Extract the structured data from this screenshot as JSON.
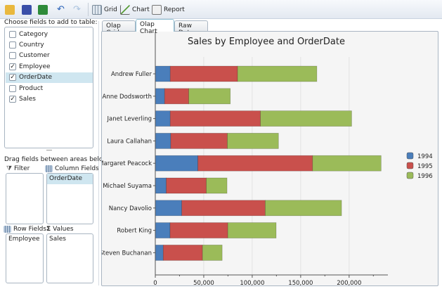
{
  "toolbar": {
    "buttons": [
      {
        "icon": "open-folder-icon"
      },
      {
        "icon": "save-icon"
      },
      {
        "icon": "excel-export-icon"
      },
      {
        "icon": "undo-icon"
      },
      {
        "icon": "redo-icon"
      }
    ],
    "grid_label": "Grid",
    "chart_label": "Chart",
    "report_label": "Report"
  },
  "left": {
    "choose_label": "Choose fields to add to table:",
    "fields": [
      {
        "label": "Category",
        "checked": false
      },
      {
        "label": "Country",
        "checked": false
      },
      {
        "label": "Customer",
        "checked": false
      },
      {
        "label": "Employee",
        "checked": true
      },
      {
        "label": "OrderDate",
        "checked": true,
        "selected": true
      },
      {
        "label": "Product",
        "checked": false
      },
      {
        "label": "Sales",
        "checked": true
      }
    ],
    "drag_label": "Drag fields between areas below:",
    "filter_label": "Filter",
    "column_label": "Column Fields",
    "row_label": "Row Fields",
    "values_label": "Values",
    "column_items": [
      "OrderDate"
    ],
    "row_items": [
      "Employee"
    ],
    "value_items": [
      "Sales"
    ]
  },
  "tabs": [
    {
      "label": "Olap Grid"
    },
    {
      "label": "Olap Chart",
      "active": true
    },
    {
      "label": "Raw Data"
    }
  ],
  "chart_data": {
    "type": "bar",
    "orientation": "horizontal",
    "stacked": true,
    "title": "Sales by Employee and OrderDate",
    "xlabel": "",
    "ylabel": "",
    "xlim": [
      0,
      240000
    ],
    "xticks": [
      0,
      50000,
      100000,
      150000,
      200000
    ],
    "xtick_labels": [
      "0",
      "50,000",
      "100,000",
      "150,000",
      "200,000"
    ],
    "grid": true,
    "legend": "right",
    "categories": [
      "Andrew Fuller",
      "Anne Dodsworth",
      "Janet Leverling",
      "Laura Callahan",
      "Margaret Peacock",
      "Michael Suyama",
      "Nancy Davolio",
      "Robert King",
      "Steven Buchanan"
    ],
    "series": [
      {
        "name": "1994",
        "color": "#4a7ebb",
        "values": [
          15400,
          9600,
          15400,
          15900,
          43900,
          11300,
          27300,
          15200,
          8200
        ]
      },
      {
        "name": "1995",
        "color": "#c9504c",
        "values": [
          69500,
          24900,
          93100,
          58400,
          118400,
          41300,
          86100,
          59600,
          40500
        ]
      },
      {
        "name": "1996",
        "color": "#9bbb59",
        "values": [
          81800,
          42900,
          94100,
          52800,
          70700,
          21400,
          78800,
          49900,
          20300
        ]
      }
    ]
  }
}
